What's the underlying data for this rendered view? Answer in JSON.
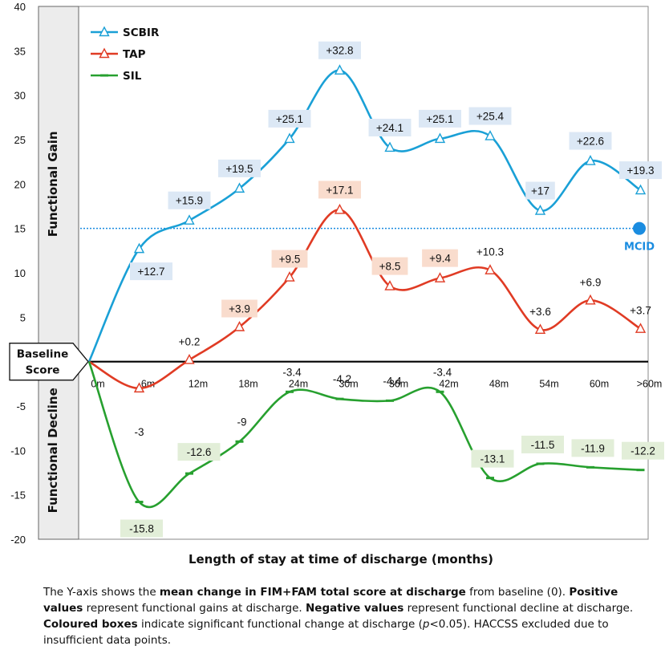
{
  "chart_data": {
    "type": "line",
    "categories": [
      "0m",
      "6m",
      "12m",
      "18m",
      "24m",
      "30m",
      "36m",
      "42m",
      "48m",
      "54m",
      "60m",
      ">60m"
    ],
    "series": [
      {
        "name": "SCBIR",
        "color": "#1aa0d6",
        "marker": "triangle",
        "values": [
          0,
          12.7,
          15.9,
          19.5,
          25.1,
          32.8,
          24.1,
          25.1,
          25.4,
          17,
          22.6,
          19.3
        ],
        "labels": [
          "",
          "+12.7",
          "+15.9",
          "+19.5",
          "+25.1",
          "+32.8",
          "+24.1",
          "+25.1",
          "+25.4",
          "+17",
          "+22.6",
          "+19.3"
        ],
        "significant": [
          false,
          true,
          true,
          true,
          true,
          true,
          true,
          true,
          true,
          true,
          true,
          true
        ]
      },
      {
        "name": "TAP",
        "color": "#e03b24",
        "marker": "triangle",
        "values": [
          0,
          -3,
          0.2,
          3.9,
          9.5,
          17.1,
          8.5,
          9.4,
          10.3,
          3.6,
          6.9,
          3.7
        ],
        "labels": [
          "",
          "-3",
          "+0.2",
          "+3.9",
          "+9.5",
          "+17.1",
          "+8.5",
          "+9.4",
          "+10.3",
          "+3.6",
          "+6.9",
          "+3.7"
        ],
        "significant": [
          false,
          false,
          false,
          true,
          true,
          true,
          true,
          true,
          false,
          false,
          false,
          false
        ]
      },
      {
        "name": "SIL",
        "color": "#27a02f",
        "marker": "dash",
        "values": [
          0,
          -15.8,
          -12.6,
          -9,
          -3.4,
          -4.2,
          -4.4,
          -3.4,
          -13.1,
          -11.5,
          -11.9,
          -12.2
        ],
        "labels": [
          "",
          "-15.8",
          "-12.6",
          "-9",
          "-3.4",
          "-4.2",
          "-4.4",
          "-3.4",
          "-13.1",
          "-11.5",
          "-11.9",
          "-12.2"
        ],
        "significant": [
          false,
          true,
          true,
          false,
          false,
          false,
          false,
          false,
          true,
          true,
          true,
          true
        ]
      }
    ],
    "ylim": [
      -20,
      40
    ],
    "yticks": [
      "-20",
      "-15",
      "-10",
      "-5",
      "",
      "5",
      "10",
      "15",
      "20",
      "25",
      "30",
      "35",
      "40"
    ],
    "xlabel": "Length of stay at time of discharge (months)",
    "ylabel_gain": "Functional Gain",
    "ylabel_decline": "Functional Decline",
    "baseline_label": [
      "Baseline",
      "Score"
    ],
    "mcid": {
      "value": 15,
      "label": "MCID",
      "color": "#1a8ce0"
    },
    "legend_position": "top-left",
    "box_colors": {
      "SCBIR": "#dce8f5",
      "TAP": "#f9dccd",
      "SIL": "#e2eed8"
    }
  },
  "caption": {
    "p1": "The Y-axis shows the ",
    "b1": "mean change in FIM+FAM total score at discharge",
    "p2": " from baseline (0). ",
    "b2": "Positive values",
    "p3": " represent functional gains at discharge. ",
    "b3": "Negative values",
    "p4": " represent functional decline at discharge. ",
    "b4": "Coloured boxes",
    "p5": " indicate significant functional change at discharge (",
    "i1": "p",
    "p6": "<0.05).  HACCSS excluded due to insufficient  data points."
  }
}
